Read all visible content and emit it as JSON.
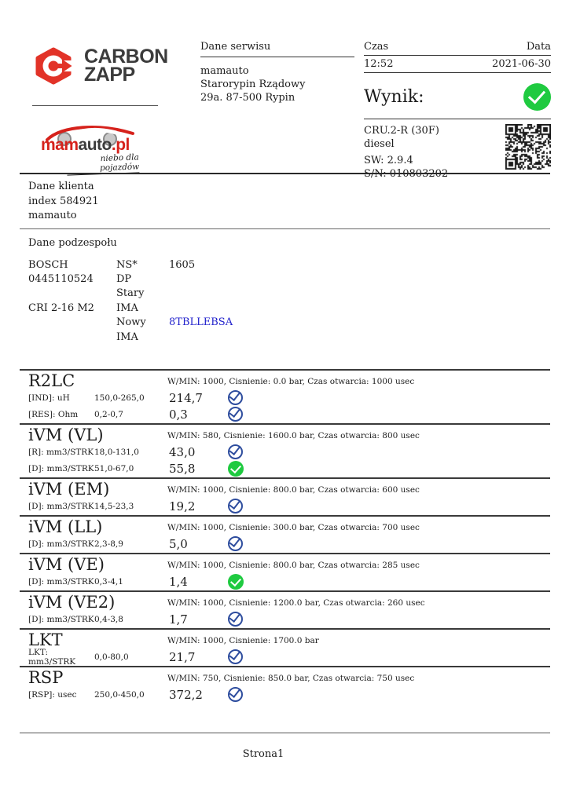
{
  "header": {
    "brand": {
      "line1": "CARBON",
      "line2": "ZAPP"
    },
    "dealer_logo": {
      "part1": "mam",
      "part2": "auto",
      "part3": ".pl",
      "tagline": "niebo dla pojazdów"
    },
    "service": {
      "title": "Dane serwisu",
      "lines": [
        "mamauto",
        "Starorypin Rządowy",
        "29a. 87-500 Rypin"
      ]
    },
    "time": {
      "label": "Czas",
      "value": "12:52"
    },
    "date": {
      "label": "Data",
      "value": "2021-06-30"
    },
    "result_label": "Wynik:",
    "result_icon": "check-circle-green",
    "device": {
      "model": "CRU.2-R (30F)",
      "fuel": "diesel",
      "sw": "SW: 2.9.4",
      "sn": "S/N: 010803202",
      "qr": "qr-code"
    }
  },
  "client": {
    "title": "Dane klienta",
    "lines": [
      "index 584921",
      "mamauto"
    ]
  },
  "component": {
    "title": "Dane podzespołu",
    "rows": [
      {
        "c1": "BOSCH",
        "c2": "NS*",
        "c3": "1605",
        "c3_highlight": false
      },
      {
        "c1": "0445110524",
        "c2": "DP",
        "c3": "",
        "c3_highlight": false
      },
      {
        "c1": "",
        "c2": "Stary",
        "c3": "",
        "c3_highlight": false
      },
      {
        "c1": "CRI 2-16 M2",
        "c2": "IMA",
        "c3": "",
        "c3_highlight": false
      },
      {
        "c1": "",
        "c2": "Nowy",
        "c3": "8TBLLEBSA",
        "c3_highlight": true
      },
      {
        "c1": "",
        "c2": "IMA",
        "c3": "",
        "c3_highlight": false
      }
    ]
  },
  "tests": [
    {
      "name": "R2LC",
      "params": "W/MIN: 1000, Cisnienie: 0.0 bar, Czas otwarcia: 1000 usec",
      "rows": [
        {
          "label": "[IND]: uH",
          "range": "150,0-265,0",
          "value": "214,7",
          "status": "pass-blue"
        },
        {
          "label": "[RES]: Ohm",
          "range": "0,2-0,7",
          "value": "0,3",
          "status": "pass-blue"
        }
      ]
    },
    {
      "name": "iVM (VL)",
      "params": "W/MIN: 580, Cisnienie: 1600.0 bar, Czas otwarcia: 800 usec",
      "rows": [
        {
          "label": "[R]: mm3/STRK",
          "range": "18,0-131,0",
          "value": "43,0",
          "status": "pass-blue"
        },
        {
          "label": "[D]: mm3/STRK",
          "range": "51,0-67,0",
          "value": "55,8",
          "status": "pass-green"
        }
      ]
    },
    {
      "name": "iVM (EM)",
      "params": "W/MIN: 1000, Cisnienie: 800.0 bar, Czas otwarcia: 600 usec",
      "rows": [
        {
          "label": "[D]: mm3/STRK",
          "range": "14,5-23,3",
          "value": "19,2",
          "status": "pass-blue"
        }
      ]
    },
    {
      "name": "iVM (LL)",
      "params": "W/MIN: 1000, Cisnienie: 300.0 bar, Czas otwarcia: 700 usec",
      "rows": [
        {
          "label": "[D]: mm3/STRK",
          "range": "2,3-8,9",
          "value": "5,0",
          "status": "pass-blue"
        }
      ]
    },
    {
      "name": "iVM (VE)",
      "params": "W/MIN: 1000, Cisnienie: 800.0 bar, Czas otwarcia: 285 usec",
      "rows": [
        {
          "label": "[D]: mm3/STRK",
          "range": "0,3-4,1",
          "value": "1,4",
          "status": "pass-green"
        }
      ]
    },
    {
      "name": "iVM (VE2)",
      "params": "W/MIN: 1000, Cisnienie: 1200.0 bar, Czas otwarcia: 260 usec",
      "rows": [
        {
          "label": "[D]: mm3/STRK",
          "range": "0,4-3,8",
          "value": "1,7",
          "status": "pass-blue"
        }
      ]
    },
    {
      "name": "LKT",
      "params": "W/MIN: 1000, Cisnienie: 1700.0 bar",
      "rows": [
        {
          "label": "LKT: mm3/STRK",
          "range": "0,0-80,0",
          "value": "21,7",
          "status": "pass-blue"
        }
      ]
    },
    {
      "name": "RSP",
      "params": "W/MIN: 750, Cisnienie: 850.0 bar, Czas otwarcia: 750 usec",
      "rows": [
        {
          "label": "[RSP]: usec",
          "range": "250,0-450,0",
          "value": "372,2",
          "status": "pass-blue"
        }
      ]
    }
  ],
  "footer": {
    "page": "Strona1"
  },
  "colors": {
    "brand_red": "#e23328",
    "pass_green": "#1fca40",
    "pass_blue": "#2e4d9e",
    "highlight_blue": "#2222cc"
  }
}
